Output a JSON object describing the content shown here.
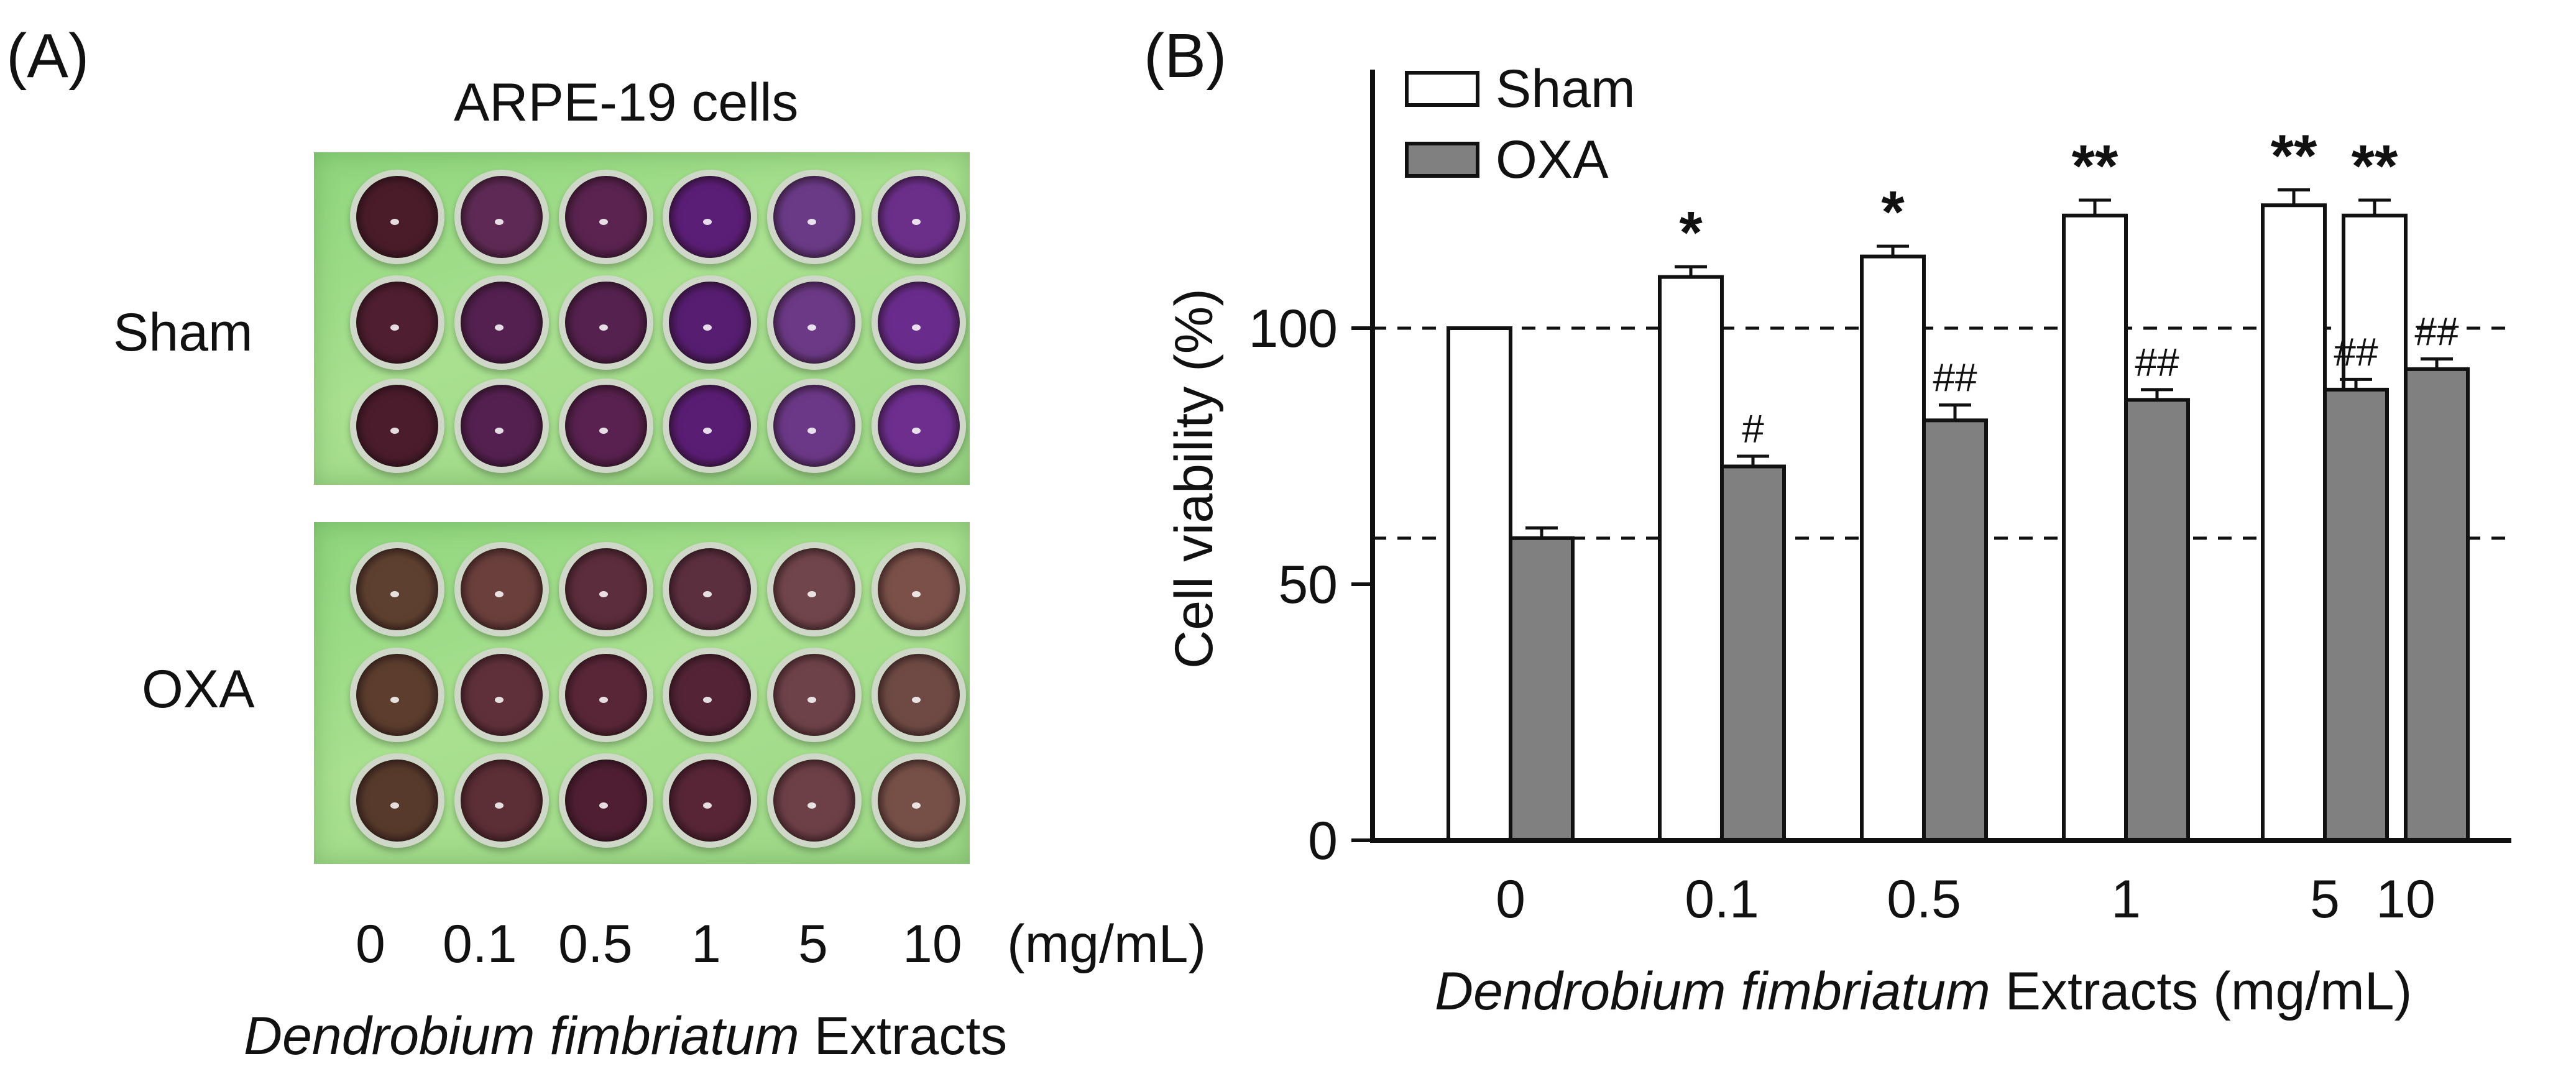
{
  "panel_a": {
    "label": "(A)",
    "title": "ARPE-19 cells",
    "row_labels": [
      "Sham",
      "OXA"
    ],
    "concentrations": [
      "0",
      "0.1",
      "0.5",
      "1",
      "5",
      "10"
    ],
    "unit": "(mg/mL)",
    "xlabel_italic": "Dendrobium fimbriatum",
    "xlabel_rest": " Extracts",
    "well_colors": {
      "sham": [
        [
          "#4a1c2a",
          "#5e2a55",
          "#5a2350",
          "#5b1e76",
          "#6a3a86",
          "#6b2f8a"
        ],
        [
          "#4f1e30",
          "#532050",
          "#55214f",
          "#561d70",
          "#6b3985",
          "#6a2c8c"
        ],
        [
          "#4b1c2c",
          "#542050",
          "#58214f",
          "#5a1d74",
          "#6b3887",
          "#6d2e8e"
        ]
      ],
      "oxa": [
        [
          "#5e4030",
          "#6a3f3c",
          "#5c2d3c",
          "#5c2f3f",
          "#70454b",
          "#7a5048"
        ],
        [
          "#5c3d2e",
          "#5f303a",
          "#592638",
          "#542436",
          "#6e4249",
          "#6f4a44"
        ],
        [
          "#573a2c",
          "#5c2e36",
          "#4f1e33",
          "#572536",
          "#6d3f47",
          "#765047"
        ]
      ]
    }
  },
  "panel_b": {
    "label": "(B)",
    "legend": [
      "Sham",
      "OXA"
    ]
  },
  "chart_data": {
    "type": "bar",
    "categories": [
      "0",
      "0.1",
      "0.5",
      "1",
      "5",
      "10"
    ],
    "series": [
      {
        "name": "Sham",
        "values": [
          100,
          110,
          114,
          122,
          124,
          122
        ],
        "errors": [
          0,
          2,
          2,
          3,
          3,
          3
        ],
        "annotations": [
          "",
          "*",
          "*",
          "**",
          "**",
          "**"
        ],
        "color": "#ffffff"
      },
      {
        "name": "OXA",
        "values": [
          59,
          73,
          82,
          86,
          88,
          92
        ],
        "errors": [
          2,
          2,
          3,
          2,
          2,
          2
        ],
        "annotations": [
          "",
          "#",
          "##",
          "##",
          "##",
          "##"
        ],
        "color": "#808080"
      }
    ],
    "reference_lines": [
      100,
      59
    ],
    "ylabel": "Cell viability (%)",
    "xlabel_italic": "Dendrobium fimbriatum",
    "xlabel_rest": " Extracts (mg/mL)",
    "yticks": [
      0,
      50,
      100
    ],
    "ylim": [
      0,
      150
    ]
  }
}
